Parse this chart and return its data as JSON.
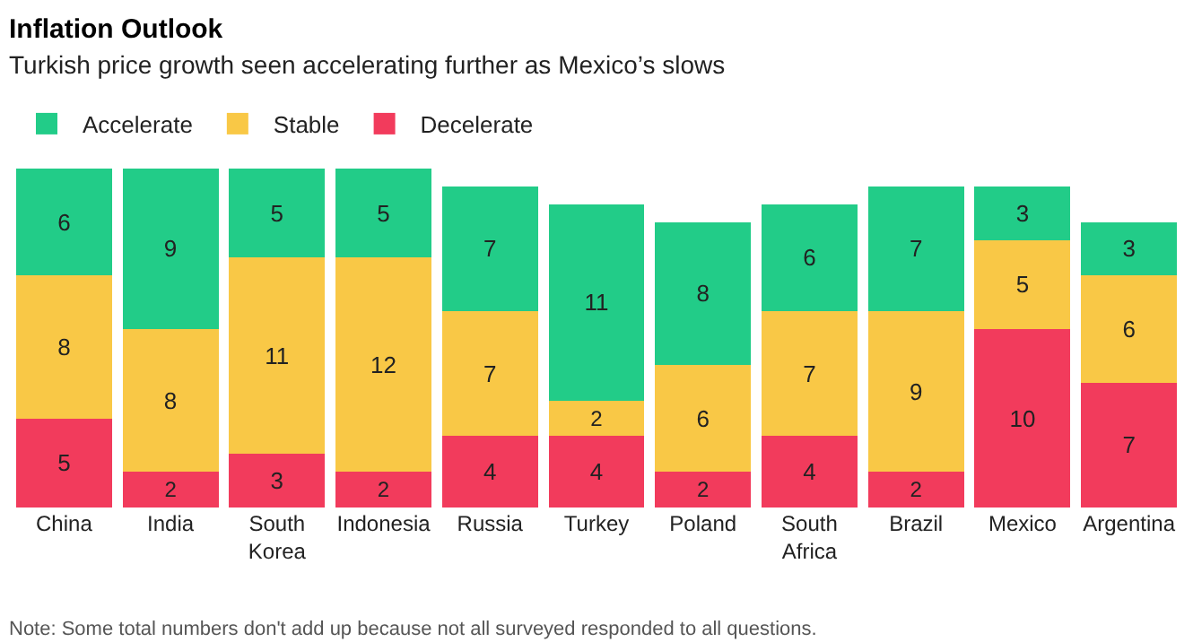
{
  "chart_data": {
    "type": "bar",
    "title": "Inflation Outlook",
    "subtitle": "Turkish price growth seen accelerating further as Mexico’s slows",
    "categories": [
      "China",
      "India",
      "South Korea",
      "Indonesia",
      "Russia",
      "Turkey",
      "Poland",
      "South Africa",
      "Brazil",
      "Mexico",
      "Argentina"
    ],
    "stacked": true,
    "data_labels": true,
    "legend": "top left",
    "grid": false,
    "series": [
      {
        "name": "Decelerate",
        "color": "#f23b5c",
        "values": [
          5,
          2,
          3,
          2,
          4,
          4,
          2,
          4,
          2,
          10,
          7
        ]
      },
      {
        "name": "Stable",
        "color": "#f9c846",
        "values": [
          8,
          8,
          11,
          12,
          7,
          2,
          6,
          7,
          9,
          5,
          6
        ]
      },
      {
        "name": "Accelerate",
        "color": "#22cc88",
        "values": [
          6,
          9,
          5,
          5,
          7,
          11,
          8,
          6,
          7,
          3,
          3
        ]
      }
    ],
    "annotations": [
      "Note: Some total numbers don't add up because not all surveyed responded to all questions."
    ]
  }
}
